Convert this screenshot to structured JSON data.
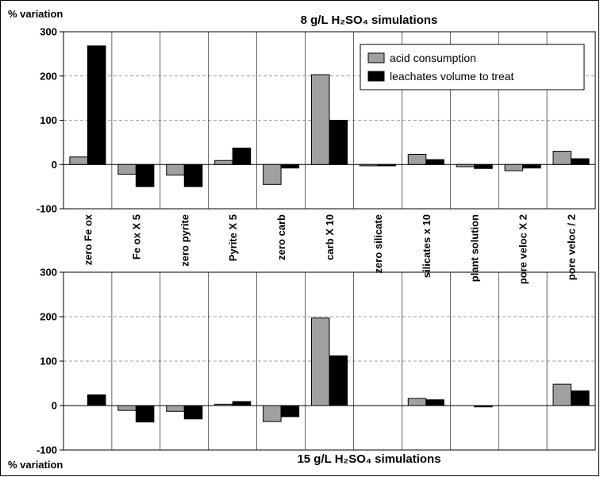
{
  "chart_data": [
    {
      "type": "bar",
      "title": "8 g/L H₂SO₄ simulations",
      "ylabel": "% variation",
      "ylim": [
        -100,
        300
      ],
      "yticks": [
        -100,
        0,
        100,
        200,
        300
      ],
      "grid": true,
      "legend_position": "top-right",
      "categories": [
        "zero  Fe ox",
        "Fe ox  X 5",
        "zero  pyrite",
        "Pyrite  X 5",
        "zero  carb",
        "carb  X 10",
        "zero  silicate",
        "silicates  x 10",
        "plant solution",
        "pore veloc  X 2",
        "pore veloc  / 2"
      ],
      "series": [
        {
          "name": "acid consumption",
          "color": "#a0a0a0",
          "values": [
            17,
            -22,
            -24,
            9,
            -45,
            203,
            -3,
            23,
            -5,
            -14,
            30
          ]
        },
        {
          "name": "leachates volume to treat",
          "color": "#000000",
          "values": [
            268,
            -50,
            -50,
            37,
            -8,
            100,
            -3,
            11,
            -9,
            -8,
            13
          ]
        }
      ]
    },
    {
      "type": "bar",
      "title": "15 g/L H₂SO₄ simulations",
      "ylabel": "% variation",
      "ylim": [
        -100,
        300
      ],
      "yticks": [
        -100,
        0,
        100,
        200,
        300
      ],
      "grid": true,
      "categories": [
        "zero  Fe ox",
        "Fe ox  X 5",
        "zero  pyrite",
        "Pyrite  X 5",
        "zero  carb",
        "carb  X 10",
        "zero  silicate",
        "silicates  x 10",
        "plant solution",
        "pore veloc  X 2",
        "pore veloc  / 2"
      ],
      "series": [
        {
          "name": "acid consumption",
          "color": "#a0a0a0",
          "values": [
            0,
            -11,
            -13,
            3,
            -36,
            197,
            0,
            16,
            0,
            0,
            48
          ]
        },
        {
          "name": "leachates volume to treat",
          "color": "#000000",
          "values": [
            24,
            -37,
            -30,
            9,
            -25,
            112,
            0,
            13,
            -3,
            0,
            33
          ]
        }
      ]
    }
  ]
}
